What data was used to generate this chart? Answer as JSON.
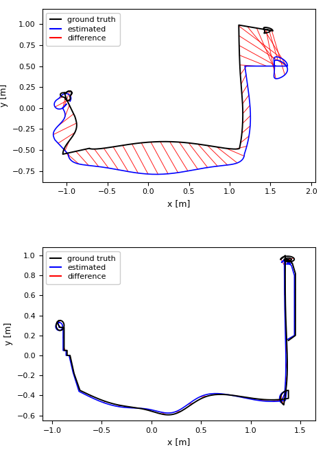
{
  "top_plot": {
    "xlim": [
      -1.3,
      2.05
    ],
    "ylim": [
      -0.88,
      1.18
    ],
    "xlabel": "x [m]",
    "ylabel": "y [m]",
    "xticks": [
      -1.0,
      -0.5,
      0.0,
      0.5,
      1.0,
      1.5,
      2.0
    ],
    "yticks": [
      -0.75,
      -0.5,
      -0.25,
      0.0,
      0.25,
      0.5,
      0.75,
      1.0
    ]
  },
  "bottom_plot": {
    "xlim": [
      -1.1,
      1.65
    ],
    "ylim": [
      -0.65,
      1.08
    ],
    "xlabel": "x [m]",
    "ylabel": "y [m]",
    "xticks": [
      -1.0,
      -0.5,
      0.0,
      0.5,
      1.0,
      1.5
    ],
    "yticks": [
      -0.6,
      -0.4,
      -0.2,
      0.0,
      0.2,
      0.4,
      0.6,
      0.8,
      1.0
    ]
  },
  "colors": {
    "ground_truth": "#000000",
    "estimated": "#0000ff",
    "difference": "#ff0000"
  },
  "legend_labels": [
    "ground truth",
    "estimated",
    "difference"
  ]
}
